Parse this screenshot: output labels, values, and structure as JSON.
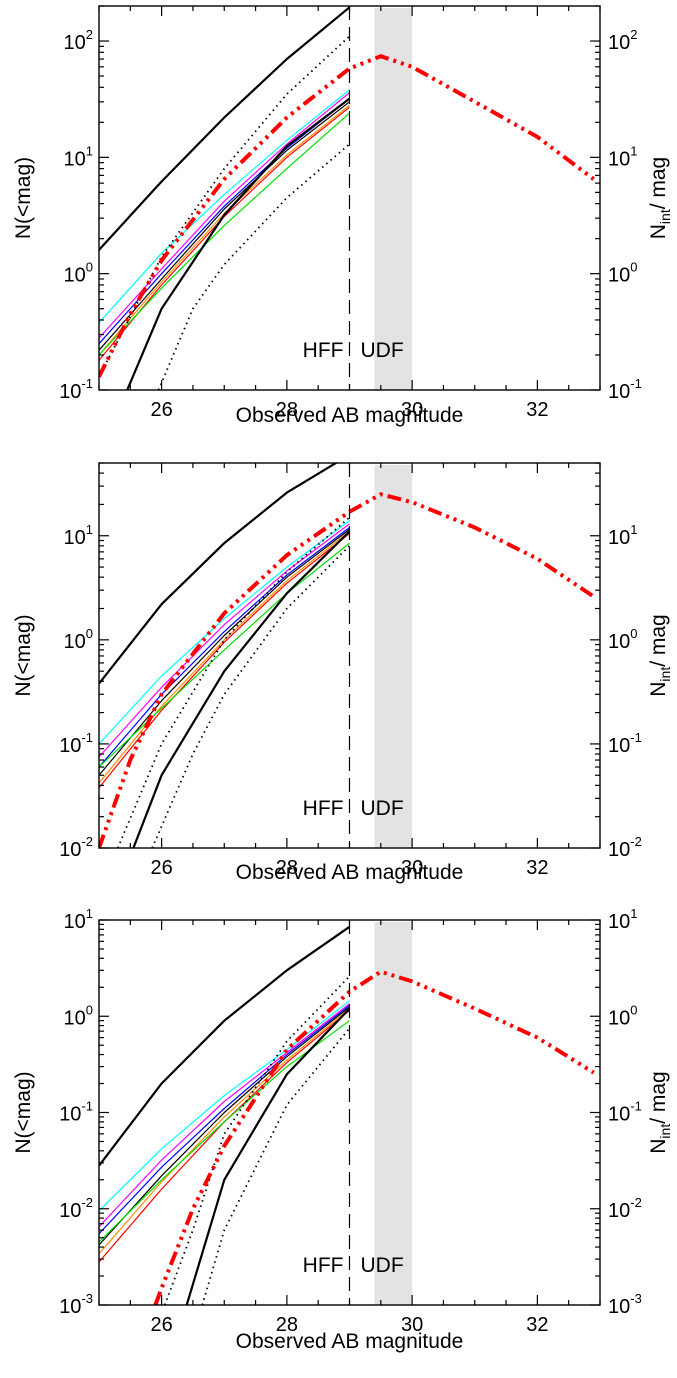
{
  "chart_data": [
    {
      "type": "line",
      "x_label": "Observed AB magnitude",
      "y_label_left": "N(<mag)",
      "y_label_right_base": "N",
      "y_label_right_sub": "int",
      "y_label_right_tail": "/ mag",
      "xlim": [
        25,
        33
      ],
      "ylim": [
        0.1,
        200
      ],
      "y_scale": "log",
      "x_ticks": [
        26,
        28,
        30,
        32
      ],
      "y_ticks": [
        0.1,
        1,
        10,
        100
      ],
      "y_tick_labels": [
        {
          "base": "10",
          "exp": "-1"
        },
        {
          "base": "10",
          "exp": "0"
        },
        {
          "base": "10",
          "exp": "1"
        },
        {
          "base": "10",
          "exp": "2"
        }
      ],
      "annotations": {
        "hff": "HFF",
        "udf": "UDF"
      },
      "hff_limit": 29,
      "udf_band": [
        29.4,
        30.0
      ],
      "colors": {
        "total": "#ff0000",
        "band": "#e3e3e3",
        "cyan": "#00ffff",
        "magenta": "#ff00ff",
        "green": "#00e000",
        "red": "#ff0000",
        "orange": "#ff8c00",
        "blue": "#0000ff",
        "black": "#000000"
      },
      "series": [
        {
          "style": "black-thick",
          "color": "#000000",
          "x": [
            25,
            26,
            27,
            28,
            29
          ],
          "y": [
            1.6,
            6.2,
            22,
            70,
            195
          ]
        },
        {
          "style": "black-thick",
          "color": "#000000",
          "x": [
            25.45,
            26,
            27,
            28,
            29
          ],
          "y": [
            0.1,
            0.5,
            3.2,
            12.5,
            32
          ]
        },
        {
          "style": "black-dotted",
          "color": "#000000",
          "x": [
            25,
            26,
            27,
            28,
            29
          ],
          "y": [
            0.13,
            1.4,
            8,
            35,
            110
          ]
        },
        {
          "style": "black-dotted",
          "color": "#000000",
          "x": [
            25.95,
            26.5,
            27,
            28,
            29
          ],
          "y": [
            0.1,
            0.5,
            1.2,
            4.5,
            13
          ]
        },
        {
          "style": "thin",
          "color": "#00ffff",
          "x": [
            25,
            26,
            27,
            28,
            29
          ],
          "y": [
            0.38,
            1.5,
            4.8,
            14,
            38
          ]
        },
        {
          "style": "thin",
          "color": "#ff00ff",
          "x": [
            25,
            26,
            27,
            28,
            29
          ],
          "y": [
            0.28,
            1.1,
            4.2,
            13,
            36
          ]
        },
        {
          "style": "thin",
          "color": "#0000ff",
          "x": [
            25,
            26,
            27,
            28,
            29
          ],
          "y": [
            0.25,
            1.0,
            3.8,
            12,
            32
          ]
        },
        {
          "style": "thin",
          "color": "#000000",
          "x": [
            25,
            26,
            27,
            28,
            29
          ],
          "y": [
            0.22,
            0.9,
            3.6,
            11.5,
            30
          ]
        },
        {
          "style": "thin",
          "color": "#ff8c00",
          "x": [
            25,
            26,
            27,
            28,
            29
          ],
          "y": [
            0.2,
            0.85,
            3.3,
            10.5,
            28
          ]
        },
        {
          "style": "thin",
          "color": "#ff0000",
          "x": [
            25,
            26,
            27,
            28,
            29
          ],
          "y": [
            0.18,
            0.8,
            3.1,
            10,
            27
          ]
        },
        {
          "style": "thin",
          "color": "#00e000",
          "x": [
            25,
            26,
            27,
            28,
            29
          ],
          "y": [
            0.2,
            0.75,
            2.6,
            8,
            24
          ]
        },
        {
          "style": "red-dashdot",
          "color": "#ff0000",
          "x": [
            25,
            25.5,
            26,
            27,
            28,
            29,
            29.5,
            30,
            31,
            32,
            32.9
          ],
          "y": [
            0.13,
            0.45,
            1.3,
            6.5,
            22,
            58,
            74,
            60,
            30,
            15,
            6.5
          ]
        }
      ]
    },
    {
      "type": "line",
      "x_label": "Observed AB magnitude",
      "y_label_left": "N(<mag)",
      "y_label_right_base": "N",
      "y_label_right_sub": "int",
      "y_label_right_tail": "/ mag",
      "xlim": [
        25,
        33
      ],
      "ylim": [
        0.01,
        50
      ],
      "y_scale": "log",
      "x_ticks": [
        26,
        28,
        30,
        32
      ],
      "y_ticks": [
        0.01,
        0.1,
        1,
        10
      ],
      "y_tick_labels": [
        {
          "base": "10",
          "exp": "-2"
        },
        {
          "base": "10",
          "exp": "-1"
        },
        {
          "base": "10",
          "exp": "0"
        },
        {
          "base": "10",
          "exp": "1"
        }
      ],
      "annotations": {
        "hff": "HFF",
        "udf": "UDF"
      },
      "hff_limit": 29,
      "udf_band": [
        29.4,
        30.0
      ],
      "colors": {
        "total": "#ff0000",
        "band": "#e3e3e3"
      },
      "series": [
        {
          "style": "black-thick",
          "color": "#000000",
          "x": [
            25,
            26,
            27,
            28,
            29
          ],
          "y": [
            0.38,
            2.2,
            8.5,
            26,
            60
          ]
        },
        {
          "style": "black-thick",
          "color": "#000000",
          "x": [
            25.55,
            26,
            27,
            28,
            29
          ],
          "y": [
            0.01,
            0.05,
            0.5,
            2.8,
            11
          ]
        },
        {
          "style": "black-dotted",
          "color": "#000000",
          "x": [
            25.3,
            26,
            27,
            28,
            29
          ],
          "y": [
            0.01,
            0.1,
            1,
            4.5,
            15
          ]
        },
        {
          "style": "black-dotted",
          "color": "#000000",
          "x": [
            25.85,
            26.5,
            27,
            28,
            29
          ],
          "y": [
            0.01,
            0.08,
            0.3,
            2,
            8
          ]
        },
        {
          "style": "thin",
          "color": "#00ffff",
          "x": [
            25,
            26,
            27,
            28,
            29
          ],
          "y": [
            0.1,
            0.45,
            1.6,
            5,
            14
          ]
        },
        {
          "style": "thin",
          "color": "#ff00ff",
          "x": [
            25,
            26,
            27,
            28,
            29
          ],
          "y": [
            0.075,
            0.35,
            1.4,
            4.6,
            13
          ]
        },
        {
          "style": "thin",
          "color": "#0000ff",
          "x": [
            25,
            26,
            27,
            28,
            29
          ],
          "y": [
            0.06,
            0.3,
            1.2,
            4.2,
            12
          ]
        },
        {
          "style": "thin",
          "color": "#000000",
          "x": [
            25,
            26,
            27,
            28,
            29
          ],
          "y": [
            0.05,
            0.26,
            1.1,
            4,
            11.5
          ]
        },
        {
          "style": "thin",
          "color": "#ff8c00",
          "x": [
            25,
            26,
            27,
            28,
            29
          ],
          "y": [
            0.042,
            0.23,
            1.0,
            3.7,
            11
          ]
        },
        {
          "style": "thin",
          "color": "#ff0000",
          "x": [
            25,
            26,
            27,
            28,
            29
          ],
          "y": [
            0.038,
            0.21,
            0.95,
            3.5,
            10.5
          ]
        },
        {
          "style": "thin",
          "color": "#00e000",
          "x": [
            25,
            26,
            27,
            28,
            29
          ],
          "y": [
            0.06,
            0.22,
            0.8,
            2.8,
            8.5
          ]
        },
        {
          "style": "red-dashdot",
          "color": "#ff0000",
          "x": [
            25,
            25.5,
            26,
            27,
            28,
            29,
            29.5,
            30,
            31,
            32,
            32.9
          ],
          "y": [
            0.01,
            0.07,
            0.3,
            1.8,
            6.5,
            17,
            25,
            21,
            12,
            6,
            2.6
          ]
        }
      ]
    },
    {
      "type": "line",
      "x_label": "Observed AB magnitude",
      "y_label_left": "N(<mag)",
      "y_label_right_base": "N",
      "y_label_right_sub": "int",
      "y_label_right_tail": "/ mag",
      "xlim": [
        25,
        33
      ],
      "ylim": [
        0.001,
        10
      ],
      "y_scale": "log",
      "x_ticks": [
        26,
        28,
        30,
        32
      ],
      "y_ticks": [
        0.001,
        0.01,
        0.1,
        1,
        10
      ],
      "y_tick_labels": [
        {
          "base": "10",
          "exp": "-3"
        },
        {
          "base": "10",
          "exp": "-2"
        },
        {
          "base": "10",
          "exp": "-1"
        },
        {
          "base": "10",
          "exp": "0"
        },
        {
          "base": "10",
          "exp": "1"
        }
      ],
      "annotations": {
        "hff": "HFF",
        "udf": "UDF"
      },
      "hff_limit": 29,
      "udf_band": [
        29.4,
        30.0
      ],
      "colors": {
        "total": "#ff0000",
        "band": "#e3e3e3"
      },
      "series": [
        {
          "style": "black-thick",
          "color": "#000000",
          "x": [
            25,
            26,
            27,
            28,
            29
          ],
          "y": [
            0.028,
            0.2,
            0.9,
            3,
            8.5
          ]
        },
        {
          "style": "black-thick",
          "color": "#000000",
          "x": [
            26.4,
            27,
            28,
            29
          ],
          "y": [
            0.001,
            0.02,
            0.25,
            1.2
          ]
        },
        {
          "style": "black-dotted",
          "color": "#000000",
          "x": [
            26.05,
            26.5,
            27,
            28,
            29
          ],
          "y": [
            0.001,
            0.006,
            0.06,
            0.55,
            2.6
          ]
        },
        {
          "style": "black-dotted",
          "color": "#000000",
          "x": [
            26.65,
            27,
            28,
            29
          ],
          "y": [
            0.001,
            0.006,
            0.12,
            0.75
          ]
        },
        {
          "style": "thin",
          "color": "#00ffff",
          "x": [
            25,
            26,
            27,
            28,
            29
          ],
          "y": [
            0.0095,
            0.042,
            0.15,
            0.45,
            1.45
          ]
        },
        {
          "style": "thin",
          "color": "#ff00ff",
          "x": [
            25,
            26,
            27,
            28,
            29
          ],
          "y": [
            0.0065,
            0.032,
            0.13,
            0.42,
            1.35
          ]
        },
        {
          "style": "thin",
          "color": "#0000ff",
          "x": [
            25,
            26,
            27,
            28,
            29
          ],
          "y": [
            0.0055,
            0.027,
            0.11,
            0.4,
            1.3
          ]
        },
        {
          "style": "thin",
          "color": "#000000",
          "x": [
            25,
            26,
            27,
            28,
            29
          ],
          "y": [
            0.0042,
            0.022,
            0.1,
            0.38,
            1.25
          ]
        },
        {
          "style": "thin",
          "color": "#ff8c00",
          "x": [
            25,
            26,
            27,
            28,
            29
          ],
          "y": [
            0.0034,
            0.019,
            0.09,
            0.35,
            1.2
          ]
        },
        {
          "style": "thin",
          "color": "#ff0000",
          "x": [
            25,
            26,
            27,
            28,
            29
          ],
          "y": [
            0.0028,
            0.016,
            0.08,
            0.33,
            1.15
          ]
        },
        {
          "style": "thin",
          "color": "#00e000",
          "x": [
            25,
            26,
            27,
            28,
            29
          ],
          "y": [
            0.0045,
            0.02,
            0.08,
            0.3,
            0.9
          ]
        },
        {
          "style": "red-dashdot",
          "color": "#ff0000",
          "x": [
            25.9,
            26,
            26.5,
            27,
            28,
            29,
            29.5,
            30,
            31,
            32,
            32.9
          ],
          "y": [
            0.001,
            0.0015,
            0.01,
            0.045,
            0.45,
            1.8,
            2.9,
            2.3,
            1.2,
            0.6,
            0.26
          ]
        }
      ]
    }
  ]
}
